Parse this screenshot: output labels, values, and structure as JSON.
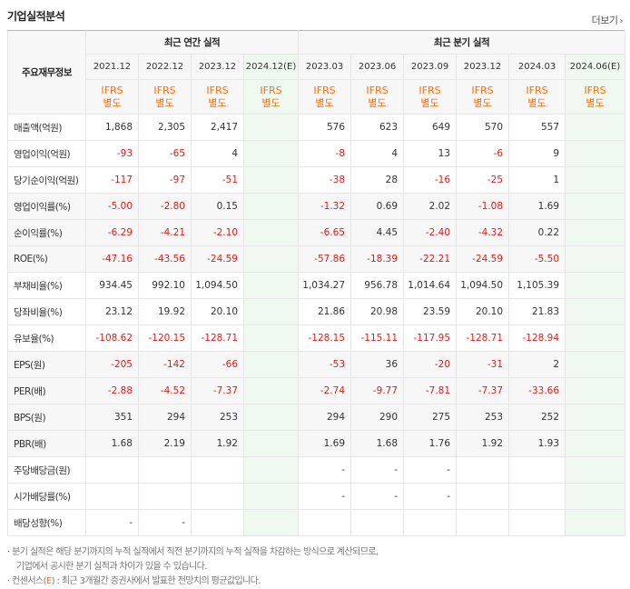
{
  "header": {
    "title": "기업실적분석",
    "more": "더보기",
    "more_icon": "chevron-right"
  },
  "columns": {
    "row_header": "주요재무정보",
    "annual_group": "최근 연간 실적",
    "quarter_group": "최근 분기 실적",
    "annual_periods": [
      "2021.12",
      "2022.12",
      "2023.12",
      "2024.12(E)"
    ],
    "quarter_periods": [
      "2023.03",
      "2023.06",
      "2023.09",
      "2023.12",
      "2024.03",
      "2024.06(E)"
    ],
    "basis_line1": "IFRS",
    "basis_line2": "별도"
  },
  "rows": [
    {
      "label": "매출액(억원)",
      "values": [
        "1,868",
        "2,305",
        "2,417",
        "",
        "576",
        "623",
        "649",
        "570",
        "557",
        ""
      ]
    },
    {
      "label": "영업이익(억원)",
      "values": [
        "-93",
        "-65",
        "4",
        "",
        "-8",
        "4",
        "13",
        "-6",
        "9",
        ""
      ]
    },
    {
      "label": "당기순이익(억원)",
      "values": [
        "-117",
        "-97",
        "-51",
        "",
        "-38",
        "28",
        "-16",
        "-25",
        "1",
        ""
      ]
    },
    {
      "label": "영업이익률(%)",
      "values": [
        "-5.00",
        "-2.80",
        "0.15",
        "",
        "-1.32",
        "0.69",
        "2.02",
        "-1.08",
        "1.69",
        ""
      ]
    },
    {
      "label": "순이익률(%)",
      "values": [
        "-6.29",
        "-4.21",
        "-2.10",
        "",
        "-6.65",
        "4.45",
        "-2.40",
        "-4.32",
        "0.22",
        ""
      ]
    },
    {
      "label": "ROE(%)",
      "values": [
        "-47.16",
        "-43.56",
        "-24.59",
        "",
        "-57.86",
        "-18.39",
        "-22.21",
        "-24.59",
        "-5.50",
        ""
      ]
    },
    {
      "label": "부채비율(%)",
      "values": [
        "934.45",
        "992.10",
        "1,094.50",
        "",
        "1,034.27",
        "956.78",
        "1,014.64",
        "1,094.50",
        "1,105.39",
        ""
      ]
    },
    {
      "label": "당좌비율(%)",
      "values": [
        "23.12",
        "19.92",
        "20.10",
        "",
        "21.86",
        "20.98",
        "23.59",
        "20.10",
        "21.83",
        ""
      ]
    },
    {
      "label": "유보율(%)",
      "values": [
        "-108.62",
        "-120.15",
        "-128.71",
        "",
        "-128.15",
        "-115.11",
        "-117.95",
        "-128.71",
        "-128.94",
        ""
      ]
    },
    {
      "label": "EPS(원)",
      "values": [
        "-205",
        "-142",
        "-66",
        "",
        "-53",
        "36",
        "-20",
        "-31",
        "2",
        ""
      ]
    },
    {
      "label": "PER(배)",
      "values": [
        "-2.88",
        "-4.52",
        "-7.37",
        "",
        "-2.74",
        "-9.77",
        "-7.81",
        "-7.37",
        "-33.66",
        ""
      ]
    },
    {
      "label": "BPS(원)",
      "values": [
        "351",
        "294",
        "253",
        "",
        "294",
        "290",
        "275",
        "253",
        "252",
        ""
      ]
    },
    {
      "label": "PBR(배)",
      "values": [
        "1.68",
        "2.19",
        "1.92",
        "",
        "1.69",
        "1.68",
        "1.76",
        "1.92",
        "1.93",
        ""
      ]
    },
    {
      "label": "주당배당금(원)",
      "values": [
        "",
        "",
        "",
        "",
        "-",
        "-",
        "-",
        "",
        "",
        ""
      ]
    },
    {
      "label": "시가배당률(%)",
      "values": [
        "",
        "",
        "",
        "",
        "-",
        "-",
        "-",
        "",
        "",
        ""
      ]
    },
    {
      "label": "배당성향(%)",
      "values": [
        "-",
        "-",
        "",
        "",
        "",
        "",
        "",
        "",
        "",
        ""
      ]
    }
  ],
  "notes": {
    "line1": "분기 실적은 해당 분기까지의 누적 실적에서 직전 분기까지의 누적 실적을 차감하는 방식으로 계산되므로,",
    "line2": "기업에서 공시한 분기 실적과 차이가 있을 수 있습니다.",
    "line3_prefix": "컨센서스(",
    "line3_e": "E",
    "line3_suffix": ") : 최근 3개월간 증권사에서 발표한 전망치의 평균값입니다."
  }
}
